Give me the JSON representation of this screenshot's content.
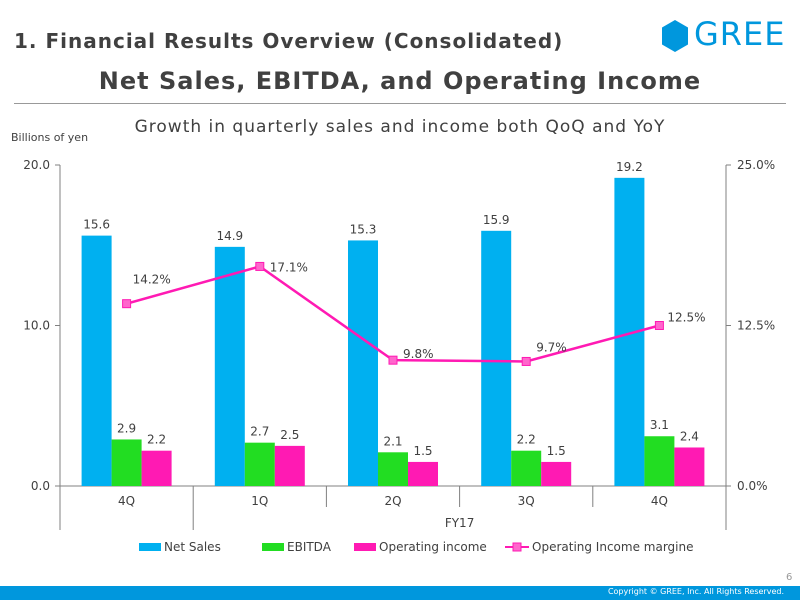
{
  "header": {
    "section_title": "1. Financial Results Overview (Consolidated)",
    "logo_text": "GREE",
    "main_title": "Net Sales, EBITDA, and Operating Income",
    "subtitle": "Growth in quarterly sales and income both QoQ and YoY"
  },
  "footer": {
    "page_number": "6",
    "copyright": "Copyright © GREE, Inc. All Rights Reserved."
  },
  "colors": {
    "brand": "#0097dd",
    "net_sales": "#00b0f0",
    "ebitda": "#22dd22",
    "operating_income": "#ff1ab3",
    "margin_line": "#ff1ab3",
    "footer": "#0097dd"
  },
  "chart_data": {
    "type": "bar",
    "unit_label": "Billions of yen",
    "categories": [
      "4Q",
      "1Q",
      "2Q",
      "3Q",
      "4Q"
    ],
    "group_label": "FY17",
    "y_left": {
      "min": 0,
      "max": 20,
      "ticks": [
        "0.0",
        "10.0",
        "20.0"
      ]
    },
    "y_right": {
      "min": 0,
      "max": 25,
      "ticks": [
        "0.0%",
        "12.5%",
        "25.0%"
      ]
    },
    "series": [
      {
        "name": "Net Sales",
        "type": "bar",
        "axis": "left",
        "values": [
          15.6,
          14.9,
          15.3,
          15.9,
          19.2
        ],
        "labels": [
          "15.6",
          "14.9",
          "15.3",
          "15.9",
          "19.2"
        ]
      },
      {
        "name": "EBITDA",
        "type": "bar",
        "axis": "left",
        "values": [
          2.9,
          2.7,
          2.1,
          2.2,
          3.1
        ],
        "labels": [
          "2.9",
          "2.7",
          "2.1",
          "2.2",
          "3.1"
        ]
      },
      {
        "name": "Operating income",
        "type": "bar",
        "axis": "left",
        "values": [
          2.2,
          2.5,
          1.5,
          1.5,
          2.4
        ],
        "labels": [
          "2.2",
          "2.5",
          "1.5",
          "1.5",
          "2.4"
        ]
      },
      {
        "name": "Operating Income margine",
        "type": "line",
        "axis": "right",
        "values": [
          14.2,
          17.1,
          9.8,
          9.7,
          12.5
        ],
        "labels": [
          "14.2%",
          "17.1%",
          "9.8%",
          "9.7%",
          "12.5%"
        ]
      }
    ],
    "legend_position": "bottom",
    "grid": false
  }
}
